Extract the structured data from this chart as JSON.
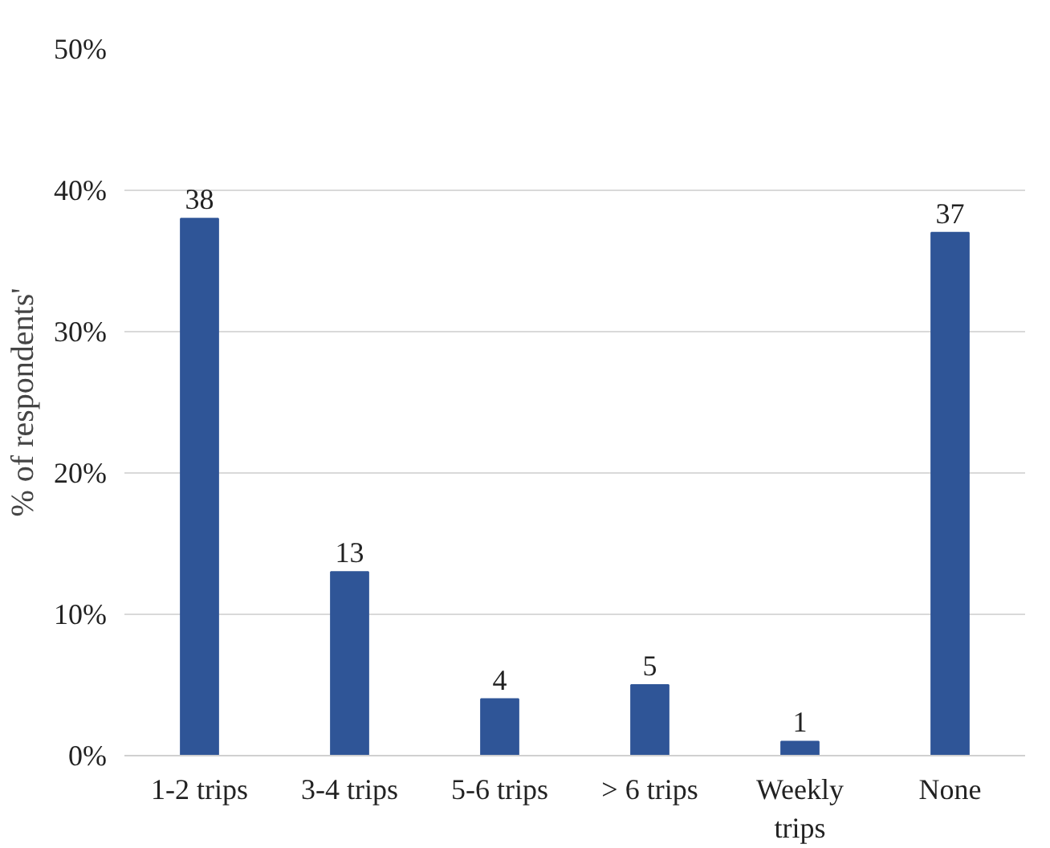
{
  "chart_data": {
    "type": "bar",
    "ylabel": "% of respondents'",
    "categories": [
      "1-2 trips",
      "3-4 trips",
      "5-6 trips",
      "> 6 trips",
      "Weekly trips",
      "None"
    ],
    "values": [
      38,
      13,
      4,
      5,
      1,
      37
    ],
    "color": "#2f5597",
    "ylim": [
      0,
      50
    ],
    "yticks": [
      {
        "value": 0,
        "label": "0%"
      },
      {
        "value": 10,
        "label": "10%"
      },
      {
        "value": 20,
        "label": "20%"
      },
      {
        "value": 30,
        "label": "30%"
      },
      {
        "value": 40,
        "label": "40%"
      },
      {
        "value": 50,
        "label": "50%"
      }
    ],
    "grid": "y",
    "data_labels": true
  }
}
